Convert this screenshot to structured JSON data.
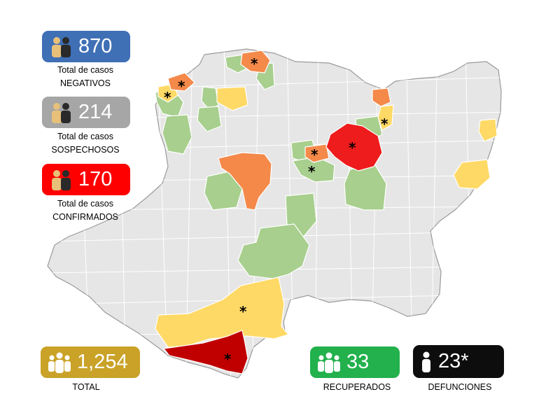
{
  "colors": {
    "negativos": "#3f6fb5",
    "sospechosos": "#a6a6a6",
    "confirmados": "#ff0000",
    "total": "#c9a227",
    "recuperados": "#22b14c",
    "defunciones": "#0d0d0d",
    "map_none": "#e6e6e6",
    "map_green": "#a8cf8e",
    "map_yellow": "#ffd966",
    "map_orange": "#f4894a",
    "map_red": "#ee1c1c",
    "map_darkred": "#c00000"
  },
  "legend_levels": [
    "none",
    "green",
    "yellow",
    "orange",
    "red",
    "darkred"
  ],
  "stats": {
    "negativos": {
      "value": "870",
      "line1": "Total de casos",
      "line2": "NEGATIVOS",
      "icon": "two-people-icon"
    },
    "sospechosos": {
      "value": "214",
      "line1": "Total de casos",
      "line2": "SOSPECHOSOS",
      "icon": "two-people-icon"
    },
    "confirmados": {
      "value": "170",
      "line1": "Total de casos",
      "line2": "CONFIRMADOS",
      "icon": "two-people-icon"
    },
    "total": {
      "value": "1,254",
      "caption": "TOTAL",
      "icon": "group-icon"
    },
    "recuperados": {
      "value": "33",
      "caption": "RECUPERADOS",
      "icon": "group-icon"
    },
    "defunciones": {
      "value": "23*",
      "caption": "DEFUNCIONES",
      "icon": "person-icon"
    }
  }
}
